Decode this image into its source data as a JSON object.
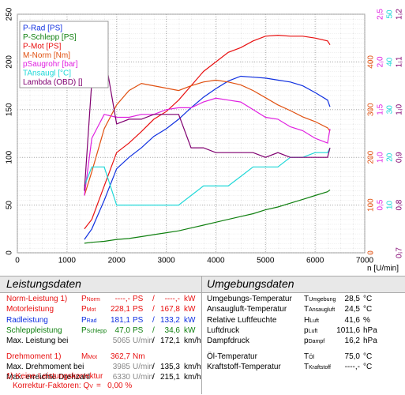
{
  "chart_data": {
    "type": "line",
    "x": [
      1350,
      1500,
      1750,
      2000,
      2250,
      2500,
      2750,
      3000,
      3250,
      3500,
      3750,
      4000,
      4250,
      4500,
      4750,
      5000,
      5250,
      5500,
      5750,
      6000,
      6250,
      6300
    ],
    "series": [
      {
        "name": "P-Rad [PS]",
        "color": "#1030e0",
        "axis": "y",
        "values": [
          14,
          25,
          55,
          88,
          100,
          110,
          122,
          130,
          140,
          152,
          163,
          172,
          180,
          185,
          184,
          183,
          181,
          179,
          175,
          168,
          160,
          153
        ]
      },
      {
        "name": "P-Schlepp [PS]",
        "color": "#108010",
        "axis": "y",
        "values": [
          10,
          11,
          12,
          14,
          15,
          17,
          19,
          21,
          23,
          26,
          29,
          32,
          35,
          38,
          41,
          45,
          48,
          52,
          56,
          60,
          64,
          66
        ]
      },
      {
        "name": "P-Mot [PS]",
        "color": "#e81010",
        "axis": "y",
        "values": [
          25,
          35,
          70,
          105,
          115,
          127,
          140,
          148,
          160,
          175,
          190,
          200,
          210,
          215,
          222,
          227,
          228,
          227,
          227,
          225,
          222,
          218
        ]
      },
      {
        "name": "M-Norm [Nm]",
        "color": "#e05010",
        "axis": "y2",
        "values": [
          120,
          170,
          260,
          310,
          340,
          355,
          350,
          345,
          340,
          350,
          358,
          362,
          358,
          352,
          340,
          325,
          310,
          298,
          285,
          275,
          262,
          255
        ]
      },
      {
        "name": "pSaugrohr [bar]",
        "color": "#e020e0",
        "axis": "y3",
        "values": [
          0.6,
          1.2,
          1.45,
          1.42,
          1.42,
          1.45,
          1.45,
          1.5,
          1.52,
          1.52,
          1.58,
          1.62,
          1.6,
          1.58,
          1.5,
          1.42,
          1.4,
          1.32,
          1.28,
          1.2,
          1.15,
          1.3
        ]
      },
      {
        "name": "TAnsaugl [°C]",
        "color": "#20d8d8",
        "axis": "y4",
        "values": [
          14,
          18,
          18,
          10,
          10,
          10,
          10,
          10,
          10,
          12,
          14,
          14,
          14,
          16,
          18,
          18,
          18,
          20,
          20,
          21,
          21,
          22
        ]
      },
      {
        "name": "Lambda (OBD) []",
        "color": "#800070",
        "axis": "y5",
        "values": [
          0.83,
          1.06,
          1.12,
          0.97,
          0.98,
          0.98,
          0.99,
          0.99,
          0.99,
          0.92,
          0.92,
          0.91,
          0.91,
          0.91,
          0.91,
          0.9,
          0.91,
          0.9,
          0.9,
          0.9,
          0.9,
          0.92
        ]
      }
    ],
    "xlabel": "n [U/min]",
    "xlim": [
      0,
      7000
    ],
    "xticks": [
      0,
      1000,
      2000,
      3000,
      4000,
      5000,
      6000,
      7000
    ],
    "ylim": [
      0,
      250
    ],
    "yticks": [
      0,
      50,
      100,
      150,
      200,
      250
    ],
    "y2lim": [
      0,
      500
    ],
    "y2ticks": [
      0,
      100,
      200,
      300,
      400
    ],
    "y3lim": [
      0,
      2.5
    ],
    "y3ticks": [
      {
        "value": 0.5,
        "label": "0,5"
      },
      {
        "value": 1,
        "label": "1,0"
      },
      {
        "value": 1.5,
        "label": "1,5"
      },
      {
        "value": 2,
        "label": "2,0"
      },
      {
        "value": 2.5,
        "label": "2,5"
      }
    ],
    "y4lim": [
      0,
      50
    ],
    "y4ticks": [
      10,
      20,
      30,
      40,
      50
    ],
    "y5lim": [
      0.7,
      1.2
    ],
    "y5ticks": [
      {
        "value": 0.7,
        "label": "0,7"
      },
      {
        "value": 0.8,
        "label": "0,8"
      },
      {
        "value": 0.9,
        "label": "0,9"
      },
      {
        "value": 1,
        "label": "1,0"
      },
      {
        "value": 1.1,
        "label": "1,1"
      },
      {
        "value": 1.2,
        "label": "1,2"
      }
    ],
    "grid": true,
    "legend": "upper left"
  },
  "leistungsdaten": {
    "title": "Leistungsdaten",
    "rows": [
      {
        "label": "Norm-Leistung 1)",
        "color": "#e81010",
        "sym": "P",
        "sub": "Norm",
        "v1": "----,-",
        "u1": "PS",
        "sep": "/",
        "v2": "----,-",
        "u2": "kW"
      },
      {
        "label": "Motorleistung",
        "color": "#e81010",
        "sym": "P",
        "sub": "Mot",
        "v1": "228,1",
        "u1": "PS",
        "sep": "/",
        "v2": "167,8",
        "u2": "kW"
      },
      {
        "label": "Radleistung",
        "color": "#1030e0",
        "sym": "P",
        "sub": "Rad",
        "v1": "181,1",
        "u1": "PS",
        "sep": "/",
        "v2": "133,2",
        "u2": "kW"
      },
      {
        "label": "Schleppleistung",
        "color": "#108010",
        "sym": "P",
        "sub": "Schlepp",
        "v1": "47,0",
        "u1": "PS",
        "sep": "/",
        "v2": "34,6",
        "u2": "kW"
      },
      {
        "label": "Max. Leistung bei",
        "color": "#000000",
        "v1": "5065",
        "v1_color": "#888888",
        "u1": "U/min",
        "sep": "/",
        "v2": "172,1",
        "u2": "km/h"
      },
      {
        "label": "Drehmoment 1)",
        "color": "#e81010",
        "sym": "M",
        "sub": "Mot",
        "v1": "362,7",
        "u1": "Nm"
      },
      {
        "label": "Max. Drehmoment bei",
        "color": "#000000",
        "v1": "3985",
        "v1_color": "#888888",
        "u1": "U/min",
        "sep": "/",
        "v2": "135,3",
        "u2": "km/h"
      },
      {
        "label": "Max. erreichte Drehzahl",
        "color": "#000000",
        "v1": "6330",
        "v1_color": "#888888",
        "u1": "U/min",
        "sep": "/",
        "v2": "215,1",
        "u2": "km/h"
      }
    ],
    "footnote": {
      "line1": "1) Keine Leistungskorrektur",
      "line2": "Korrektur-Faktoren: Q",
      "sub": "V",
      "tail": "=   0,00 %"
    }
  },
  "umgebungsdaten": {
    "title": "Umgebungsdaten",
    "rows": [
      {
        "label": "Umgebungs-Temperatur",
        "sym": "T",
        "sub": "Umgebung",
        "v": "28,5",
        "u": "°C"
      },
      {
        "label": "Ansaugluft-Temperatur",
        "sym": "T",
        "sub": "Ansaugluft",
        "v": "24,5",
        "u": "°C"
      },
      {
        "label": "Relative Luftfeuchte",
        "sym": "H",
        "sub": "Luft",
        "v": "41,6",
        "u": "%"
      },
      {
        "label": "Luftdruck",
        "sym": "p",
        "sub": "Luft",
        "v": "1011,6",
        "u": "hPa"
      },
      {
        "label": "Dampfdruck",
        "sym": "p",
        "sub": "Dampf",
        "v": "16,2",
        "u": "hPa"
      },
      {
        "label": "Öl-Temperatur",
        "sym": "T",
        "sub": "Öl",
        "v": "75,0",
        "u": "°C"
      },
      {
        "label": "Kraftstoff-Temperatur",
        "sym": "T",
        "sub": "Kraftstoff",
        "v": "----,-",
        "u": "°C"
      }
    ]
  }
}
